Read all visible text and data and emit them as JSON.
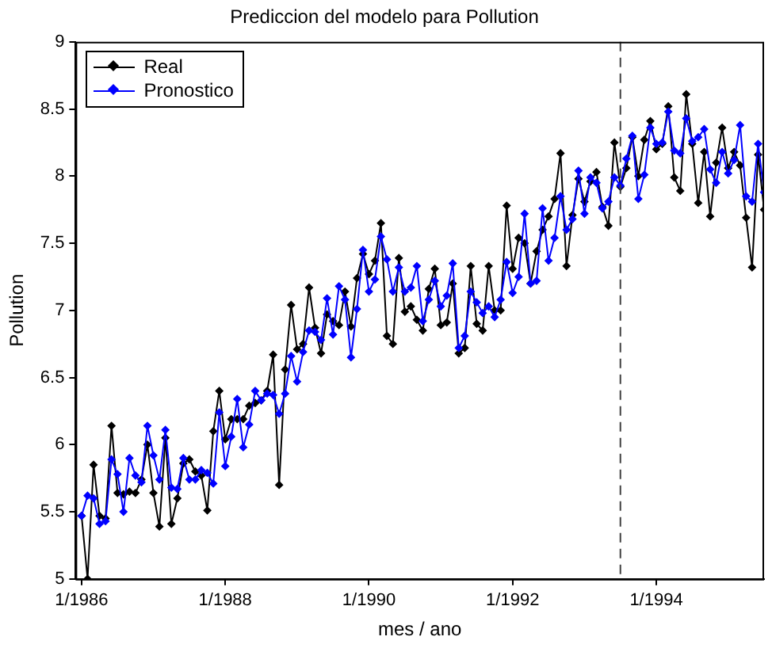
{
  "chart_data": {
    "type": "line",
    "title": "Prediccion del modelo para Pollution",
    "xlabel": "mes / ano",
    "ylabel": "Pollution",
    "x": [
      "1986-01",
      "1986-02",
      "1986-03",
      "1986-04",
      "1986-05",
      "1986-06",
      "1986-07",
      "1986-08",
      "1986-09",
      "1986-10",
      "1986-11",
      "1986-12",
      "1987-01",
      "1987-02",
      "1987-03",
      "1987-04",
      "1987-05",
      "1987-06",
      "1987-07",
      "1987-08",
      "1987-09",
      "1987-10",
      "1987-11",
      "1987-12",
      "1988-01",
      "1988-02",
      "1988-03",
      "1988-04",
      "1988-05",
      "1988-06",
      "1988-07",
      "1988-08",
      "1988-09",
      "1988-10",
      "1988-11",
      "1988-12",
      "1989-01",
      "1989-02",
      "1989-03",
      "1989-04",
      "1989-05",
      "1989-06",
      "1989-07",
      "1989-08",
      "1989-09",
      "1989-10",
      "1989-11",
      "1989-12",
      "1990-01",
      "1990-02",
      "1990-03",
      "1990-04",
      "1990-05",
      "1990-06",
      "1990-07",
      "1990-08",
      "1990-09",
      "1990-10",
      "1990-11",
      "1990-12",
      "1991-01",
      "1991-02",
      "1991-03",
      "1991-04",
      "1991-05",
      "1991-06",
      "1991-07",
      "1991-08",
      "1991-09",
      "1991-10",
      "1991-11",
      "1991-12",
      "1992-01",
      "1992-02",
      "1992-03",
      "1992-04",
      "1992-05",
      "1992-06",
      "1992-07",
      "1992-08",
      "1992-09",
      "1992-10",
      "1992-11",
      "1992-12",
      "1993-01",
      "1993-02",
      "1993-03",
      "1993-04",
      "1993-05",
      "1993-06",
      "1993-07",
      "1993-08",
      "1993-09",
      "1993-10",
      "1993-11",
      "1993-12",
      "1994-01",
      "1994-02",
      "1994-03",
      "1994-04",
      "1994-05",
      "1994-06",
      "1994-07",
      "1994-08",
      "1994-09",
      "1994-10",
      "1994-11",
      "1994-12",
      "1995-01",
      "1995-02",
      "1995-03",
      "1995-04",
      "1995-05",
      "1995-06",
      "1995-07"
    ],
    "series": [
      {
        "name": "Real",
        "color": "#000000",
        "values": [
          5.47,
          5.0,
          5.85,
          5.47,
          5.45,
          6.14,
          5.64,
          5.63,
          5.65,
          5.64,
          5.74,
          6.0,
          5.64,
          5.39,
          6.05,
          5.41,
          5.6,
          5.86,
          5.89,
          5.8,
          5.77,
          5.51,
          6.1,
          6.4,
          6.04,
          6.19,
          6.19,
          6.19,
          6.29,
          6.31,
          6.33,
          6.4,
          6.67,
          5.7,
          6.56,
          7.04,
          6.71,
          6.75,
          7.17,
          6.87,
          6.68,
          6.97,
          6.92,
          6.89,
          7.14,
          6.88,
          7.24,
          7.42,
          7.27,
          7.37,
          7.65,
          6.81,
          6.75,
          7.39,
          6.99,
          7.03,
          6.93,
          6.85,
          7.16,
          7.31,
          6.89,
          6.91,
          7.2,
          6.68,
          6.72,
          7.33,
          6.9,
          6.85,
          7.33,
          7.0,
          7.0,
          7.78,
          7.31,
          7.54,
          7.5,
          7.2,
          7.44,
          7.6,
          7.7,
          7.83,
          8.17,
          7.33,
          7.71,
          7.98,
          7.81,
          7.96,
          8.03,
          7.77,
          7.63,
          8.25,
          7.92,
          8.06,
          8.29,
          8.0,
          8.27,
          8.41,
          8.2,
          8.24,
          8.52,
          7.99,
          7.89,
          8.61,
          8.24,
          7.8,
          8.18,
          7.7,
          8.1,
          8.36,
          8.06,
          8.18,
          8.08,
          7.69,
          7.32,
          8.16,
          7.75
        ]
      },
      {
        "name": "Pronostico",
        "color": "#0000ff",
        "values": [
          5.47,
          5.62,
          5.6,
          5.41,
          5.43,
          5.89,
          5.78,
          5.5,
          5.9,
          5.77,
          5.72,
          6.14,
          5.92,
          5.74,
          6.11,
          5.68,
          5.67,
          5.9,
          5.74,
          5.74,
          5.81,
          5.79,
          5.71,
          6.24,
          5.84,
          6.06,
          6.34,
          5.98,
          6.15,
          6.4,
          6.33,
          6.38,
          6.37,
          6.23,
          6.38,
          6.66,
          6.47,
          6.69,
          6.85,
          6.84,
          6.78,
          7.09,
          6.82,
          7.18,
          7.08,
          6.65,
          7.01,
          7.45,
          7.14,
          7.23,
          7.55,
          7.38,
          7.14,
          7.32,
          7.14,
          7.17,
          7.33,
          6.92,
          7.08,
          7.22,
          7.03,
          7.11,
          7.35,
          6.72,
          6.81,
          7.14,
          7.06,
          6.98,
          7.03,
          6.95,
          7.08,
          7.36,
          7.13,
          7.25,
          7.72,
          7.2,
          7.22,
          7.76,
          7.37,
          7.54,
          7.85,
          7.6,
          7.68,
          8.04,
          7.72,
          7.99,
          7.95,
          7.76,
          7.81,
          7.99,
          7.93,
          8.13,
          8.3,
          7.83,
          8.01,
          8.36,
          8.24,
          8.25,
          8.48,
          8.19,
          8.17,
          8.43,
          8.26,
          8.29,
          8.35,
          8.05,
          7.95,
          8.18,
          8.02,
          8.12,
          8.38,
          7.85,
          7.81,
          8.24,
          7.88
        ]
      }
    ],
    "xlim": [
      "1985-12",
      "1995-07"
    ],
    "xticks": [
      {
        "value": "1986-01",
        "label": "1/1986"
      },
      {
        "value": "1988-01",
        "label": "1/1988"
      },
      {
        "value": "1990-01",
        "label": "1/1990"
      },
      {
        "value": "1992-01",
        "label": "1/1992"
      },
      {
        "value": "1994-01",
        "label": "1/1994"
      }
    ],
    "ylim": [
      5,
      9
    ],
    "yticks": [
      5,
      5.5,
      6,
      6.5,
      7,
      7.5,
      8,
      8.5,
      9
    ],
    "ref_lines": [
      {
        "axis": "x",
        "value": "1993-07",
        "color": "#404040",
        "line_style": "dashed"
      }
    ],
    "legend": "top left",
    "marker": "diamond",
    "line_style": "solid"
  }
}
